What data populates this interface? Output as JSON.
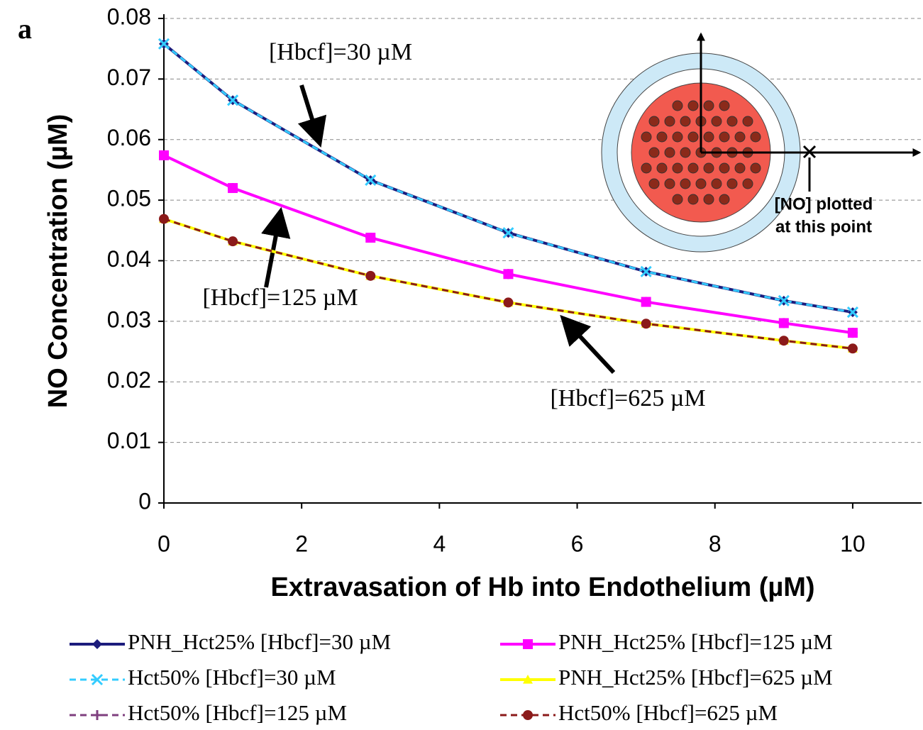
{
  "chart_data": {
    "type": "line",
    "panel_label": "a",
    "x_label": "Extravasation of Hb into Endothelium (µM)",
    "y_label": "NO Concentration (µM)",
    "xlim": [
      0,
      11
    ],
    "xticks": [
      0,
      2,
      4,
      6,
      8,
      10
    ],
    "ylim": [
      0,
      0.08
    ],
    "yticks": [
      0,
      0.01,
      0.02,
      0.03,
      0.04,
      0.05,
      0.06,
      0.07,
      0.08
    ],
    "grid": true,
    "x": [
      0,
      1,
      3,
      5,
      7,
      9,
      10
    ],
    "series": [
      {
        "name": "PNH_Hct25% [Hbcf]=30 µM",
        "color": "#1c1c7c",
        "marker": "diamond",
        "dashed": false,
        "values": [
          0.0758,
          0.0665,
          0.0533,
          0.0446,
          0.0382,
          0.0334,
          0.0315
        ]
      },
      {
        "name": "Hct50% [Hbcf]=30 µM",
        "color": "#33ccff",
        "marker": "x",
        "dashed": true,
        "values": [
          0.0758,
          0.0665,
          0.0533,
          0.0446,
          0.0382,
          0.0334,
          0.0315
        ]
      },
      {
        "name": "Hct50% [Hbcf]=125 µM",
        "color": "#7f3f7f",
        "marker": "plus",
        "dashed": true,
        "values": [
          0.0574,
          0.052,
          0.0438,
          0.0378,
          0.0332,
          0.0297,
          0.0281
        ]
      },
      {
        "name": "PNH_Hct25% [Hbcf]=125 µM",
        "color": "#ff00ff",
        "marker": "square",
        "dashed": false,
        "values": [
          0.0574,
          0.052,
          0.0438,
          0.0378,
          0.0332,
          0.0297,
          0.0281
        ]
      },
      {
        "name": "PNH_Hct25% [Hbcf]=625 µM",
        "color": "#ffff00",
        "marker": "triangle",
        "dashed": false,
        "values": [
          0.0469,
          0.0432,
          0.0375,
          0.0331,
          0.0296,
          0.0268,
          0.0255
        ]
      },
      {
        "name": "Hct50% [Hbcf]=625 µM",
        "color": "#8b1a1a",
        "marker": "circle",
        "dashed": true,
        "values": [
          0.0469,
          0.0432,
          0.0375,
          0.0331,
          0.0296,
          0.0268,
          0.0255
        ]
      }
    ],
    "annotations": [
      "[Hbcf]=30 µM",
      "[Hbcf]=125 µM",
      "[Hbcf]=625 µM"
    ],
    "inset_label": [
      "[NO] plotted",
      "at this point"
    ]
  }
}
